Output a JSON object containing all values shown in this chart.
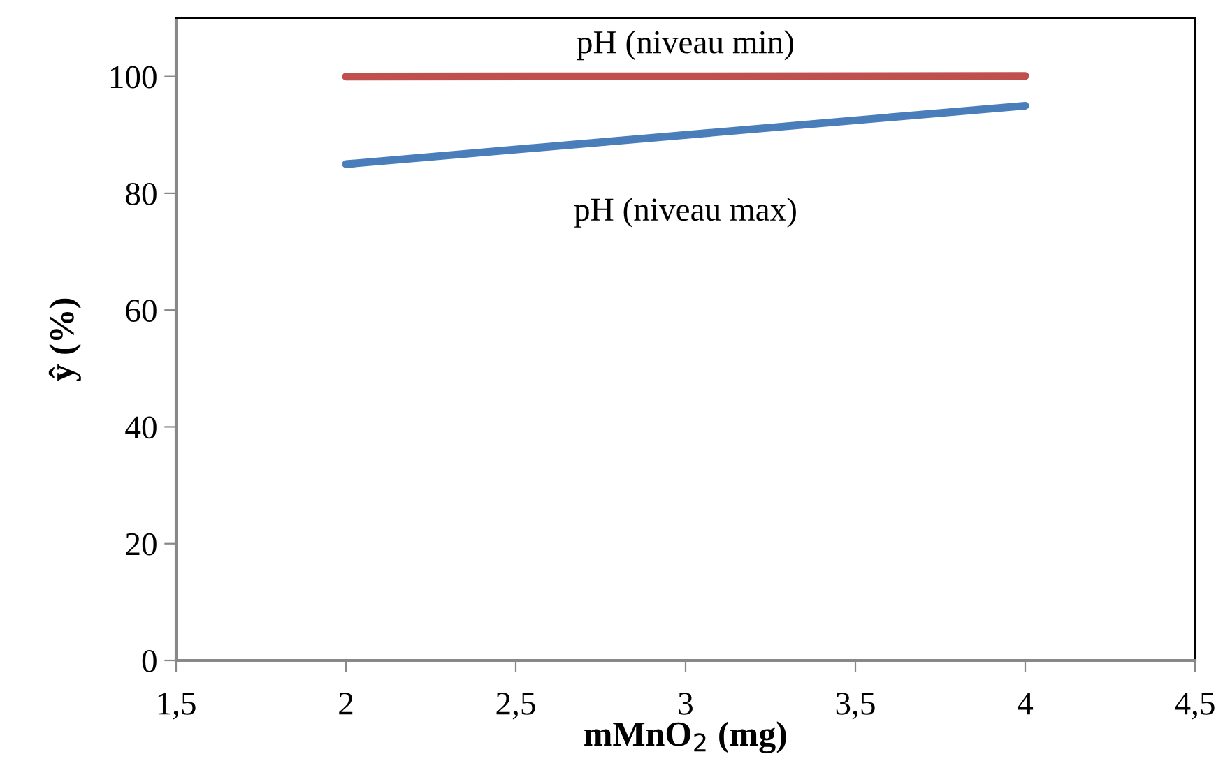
{
  "chart_data": {
    "type": "line",
    "x": [
      2,
      4
    ],
    "series": [
      {
        "color": "#c0504d",
        "values": [
          100,
          100.1
        ]
      },
      {
        "color": "#4a7ebb",
        "values": [
          85,
          95
        ]
      }
    ],
    "xlabel": "mMnO$_{2}$ (mg)",
    "ylabel": "ŷ (%)",
    "annotations": [
      "pH (niveau min)",
      "pH (niveau max)"
    ],
    "xlim": [
      1.5,
      4.5
    ],
    "xticks": [
      {
        "value": 1.5,
        "label": "1,5"
      },
      2,
      {
        "value": 2.5,
        "label": "2,5"
      },
      3,
      {
        "value": 3.5,
        "label": "3,5"
      },
      4,
      {
        "value": 4.5,
        "label": "4,5"
      }
    ],
    "ylim": [
      0,
      110
    ],
    "yticks": [
      0,
      20,
      40,
      60,
      80,
      100
    ],
    "grid": false,
    "marker": "none",
    "line_style": "solid"
  }
}
